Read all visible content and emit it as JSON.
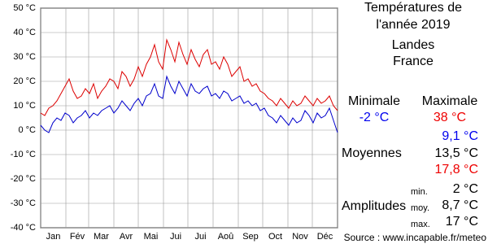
{
  "chart_data": {
    "type": "line",
    "title": [
      "Températures de",
      "l'année 2019"
    ],
    "subtitle": [
      "Landes",
      "France"
    ],
    "x": [
      0,
      5,
      10,
      15,
      20,
      25,
      30,
      35,
      40,
      45,
      50,
      55,
      60,
      65,
      70,
      75,
      80,
      85,
      90,
      95,
      100,
      105,
      110,
      115,
      120,
      125,
      130,
      135,
      140,
      145,
      150,
      155,
      160,
      165,
      170,
      175,
      180,
      185,
      190,
      195,
      200,
      205,
      210,
      215,
      220,
      225,
      230,
      235,
      240,
      245,
      250,
      255,
      260,
      265,
      270,
      275,
      280,
      285,
      290,
      295,
      300,
      305,
      310,
      315,
      320,
      325,
      330,
      335,
      340,
      345,
      350,
      355,
      360,
      365
    ],
    "xlim": [
      0,
      365
    ],
    "xticks": [
      0,
      31,
      59,
      90,
      120,
      151,
      181,
      212,
      243,
      273,
      304,
      334,
      365
    ],
    "categories": [
      "Jan",
      "Fév",
      "Mar",
      "Avr",
      "Mai",
      "Jui",
      "Jui",
      "Aoû",
      "Sep",
      "Oct",
      "Nov",
      "Déc"
    ],
    "ylim": [
      -40,
      50
    ],
    "yticks": [
      {
        "value": -40,
        "label": "-40 °C"
      },
      {
        "value": -30,
        "label": "-30 °C"
      },
      {
        "value": -20,
        "label": "-20 °C"
      },
      {
        "value": -10,
        "label": "-10 °C"
      },
      {
        "value": 0,
        "label": "0 °C"
      },
      {
        "value": 10,
        "label": "10 °C"
      },
      {
        "value": 20,
        "label": "20 °C"
      },
      {
        "value": 30,
        "label": "30 °C"
      },
      {
        "value": 40,
        "label": "40 °C"
      },
      {
        "value": 50,
        "label": "50 °C"
      }
    ],
    "grid": true,
    "series": [
      {
        "color": "#0000cc",
        "values": [
          2,
          0,
          -1,
          3,
          5,
          4,
          7,
          6,
          3,
          5,
          6,
          8,
          5,
          7,
          6,
          8,
          9,
          10,
          7,
          9,
          12,
          10,
          8,
          11,
          13,
          10,
          14,
          15,
          19,
          14,
          13,
          22,
          18,
          15,
          20,
          17,
          14,
          19,
          16,
          15,
          17,
          18,
          14,
          15,
          13,
          16,
          15,
          12,
          13,
          14,
          11,
          12,
          10,
          11,
          8,
          9,
          6,
          5,
          3,
          6,
          4,
          2,
          5,
          3,
          4,
          8,
          6,
          3,
          7,
          5,
          6,
          9,
          4,
          -1
        ]
      },
      {
        "color": "#dd0000",
        "values": [
          7,
          6,
          9,
          10,
          12,
          15,
          18,
          21,
          16,
          13,
          14,
          17,
          15,
          19,
          13,
          16,
          18,
          21,
          20,
          17,
          24,
          22,
          18,
          21,
          26,
          22,
          27,
          30,
          35,
          28,
          25,
          37,
          33,
          28,
          36,
          31,
          27,
          33,
          29,
          26,
          31,
          33,
          27,
          28,
          25,
          30,
          27,
          22,
          24,
          26,
          20,
          21,
          18,
          19,
          16,
          15,
          13,
          12,
          10,
          13,
          11,
          9,
          12,
          10,
          11,
          14,
          12,
          10,
          13,
          11,
          12,
          14,
          10,
          8
        ]
      }
    ],
    "stats": {
      "min_label": "Minimale",
      "max_label": "Maximale",
      "min": "-2 °C",
      "max": "38 °C",
      "mean_label": "Moyennes",
      "mean_min": "9,1 °C",
      "mean": "13,5 °C",
      "mean_max": "17,8 °C",
      "amp_label": "Amplitudes",
      "amp_min_label": "min.",
      "amp_min": "2 °C",
      "amp_moy_label": "moy.",
      "amp_moy": "8,7 °C",
      "amp_max_label": "max.",
      "amp_max": "17 °C"
    },
    "source": "Source : www.incapable.fr/meteo"
  }
}
